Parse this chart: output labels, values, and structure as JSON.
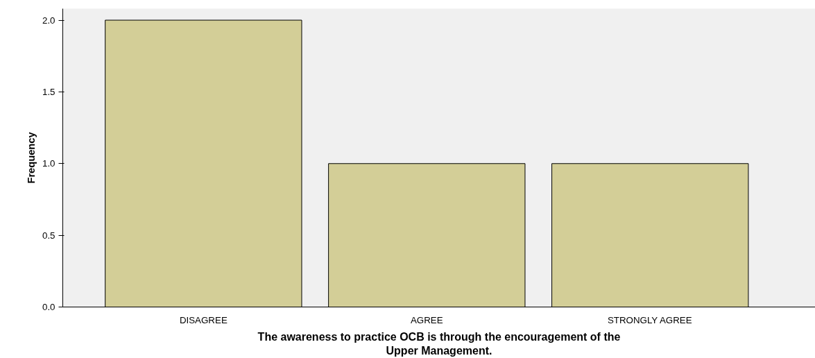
{
  "chart_data": {
    "type": "bar",
    "xlabel": "The awareness to practice OCB is through the encouragement of the Upper Management.",
    "ylabel": "Frequency",
    "categories": [
      "DISAGREE",
      "AGREE",
      "STRONGLY AGREE"
    ],
    "values": [
      2,
      1,
      1
    ],
    "color": "#d3ce97",
    "ylim": [
      0,
      2.08
    ],
    "yticks": [
      {
        "value": 0,
        "label": "0.0"
      },
      {
        "value": 0.5,
        "label": "0.5"
      },
      {
        "value": 1,
        "label": "1.0"
      },
      {
        "value": 1.5,
        "label": "1.5"
      },
      {
        "value": 2,
        "label": "2.0"
      }
    ],
    "grid": false
  }
}
